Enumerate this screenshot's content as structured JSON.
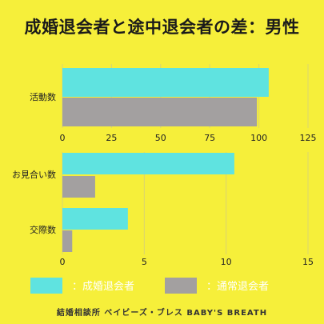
{
  "title": "成婚退会者と途中退会者の差：男性",
  "footer": "結婚相談所 ベイビーズ・ブレス BABY'S BREATH",
  "colors": {
    "background": "#f6ef3a",
    "series1": "#5fe3e0",
    "series2": "#a3a0a0"
  },
  "chart_data": [
    {
      "type": "bar",
      "orientation": "horizontal",
      "categories": [
        "活動数"
      ],
      "series": [
        {
          "name": "成婚退会者",
          "values": [
            105
          ]
        },
        {
          "name": "通常退会者",
          "values": [
            99
          ]
        }
      ],
      "xlim": [
        0,
        125
      ],
      "xticks": [
        "0",
        "25",
        "50",
        "75",
        "100",
        "125"
      ],
      "grid": true
    },
    {
      "type": "bar",
      "orientation": "horizontal",
      "categories": [
        "お見合い数",
        "交際数"
      ],
      "series": [
        {
          "name": "成婚退会者",
          "values": [
            10.5,
            4
          ]
        },
        {
          "name": "通常退会者",
          "values": [
            2,
            0.6
          ]
        }
      ],
      "xlim": [
        0,
        15
      ],
      "xticks": [
        "0",
        "5",
        "10",
        "15"
      ],
      "grid": true
    }
  ],
  "legend": {
    "position": "bottom",
    "items": [
      {
        "label": "：成婚退会者",
        "color": "#5fe3e0"
      },
      {
        "label": "：通常退会者",
        "color": "#a3a0a0"
      }
    ]
  }
}
